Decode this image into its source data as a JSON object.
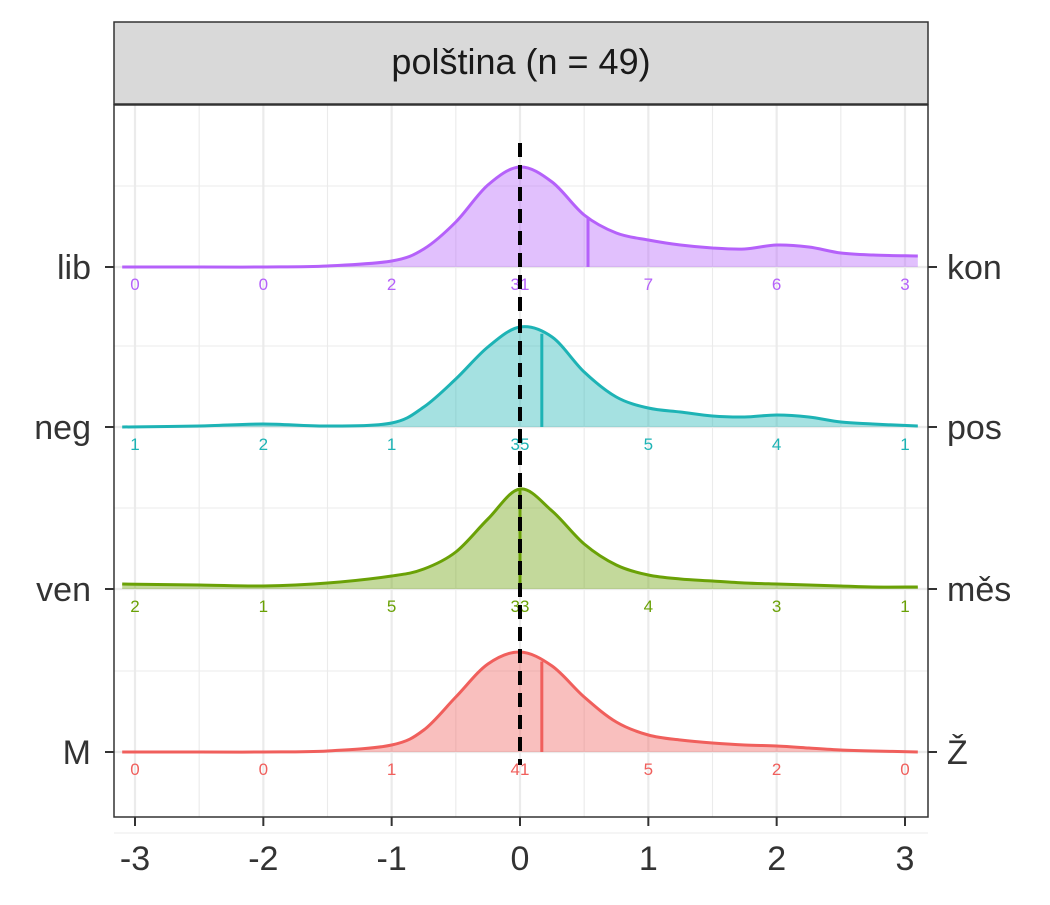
{
  "chart_data": {
    "type": "ridgeline-density",
    "title": "polština (n = 49)",
    "xlim": [
      -3,
      3
    ],
    "x_ticks": [
      "-3",
      "-2",
      "-1",
      "0",
      "1",
      "2",
      "3"
    ],
    "reference_line_x": 0,
    "grid": true,
    "series": [
      {
        "name": "lib–kon",
        "left_label": "lib",
        "right_label": "kon",
        "color": "#b561fa",
        "mean": 0.53,
        "counts": [
          0,
          0,
          2,
          31,
          7,
          6,
          3
        ],
        "density": [
          [
            -3.1,
            0
          ],
          [
            -2.5,
            0.0
          ],
          [
            -2.0,
            0.0
          ],
          [
            -1.5,
            0.01
          ],
          [
            -1.0,
            0.06
          ],
          [
            -0.75,
            0.18
          ],
          [
            -0.5,
            0.45
          ],
          [
            -0.25,
            0.82
          ],
          [
            0,
            1.0
          ],
          [
            0.25,
            0.85
          ],
          [
            0.5,
            0.52
          ],
          [
            0.75,
            0.34
          ],
          [
            1.0,
            0.27
          ],
          [
            1.25,
            0.22
          ],
          [
            1.5,
            0.19
          ],
          [
            1.75,
            0.18
          ],
          [
            2.0,
            0.22
          ],
          [
            2.25,
            0.2
          ],
          [
            2.5,
            0.14
          ],
          [
            2.75,
            0.12
          ],
          [
            3.1,
            0.11
          ]
        ]
      },
      {
        "name": "neg–pos",
        "left_label": "neg",
        "right_label": "pos",
        "color": "#1db3b5",
        "mean": 0.17,
        "counts": [
          1,
          2,
          1,
          35,
          5,
          4,
          1
        ],
        "density": [
          [
            -3.1,
            0
          ],
          [
            -2.5,
            0.01
          ],
          [
            -2.0,
            0.03
          ],
          [
            -1.5,
            0.01
          ],
          [
            -1.0,
            0.04
          ],
          [
            -0.75,
            0.2
          ],
          [
            -0.5,
            0.48
          ],
          [
            -0.25,
            0.8
          ],
          [
            0,
            1.0
          ],
          [
            0.25,
            0.9
          ],
          [
            0.5,
            0.55
          ],
          [
            0.75,
            0.3
          ],
          [
            1.0,
            0.19
          ],
          [
            1.25,
            0.15
          ],
          [
            1.5,
            0.11
          ],
          [
            1.75,
            0.1
          ],
          [
            2.0,
            0.12
          ],
          [
            2.25,
            0.1
          ],
          [
            2.5,
            0.05
          ],
          [
            2.75,
            0.03
          ],
          [
            3.1,
            0.01
          ]
        ]
      },
      {
        "name": "ven–měs",
        "left_label": "ven",
        "right_label": "měs",
        "color": "#6aa106",
        "mean": 0.0,
        "counts": [
          2,
          1,
          5,
          33,
          4,
          3,
          1
        ],
        "density": [
          [
            -3.1,
            0.05
          ],
          [
            -2.5,
            0.04
          ],
          [
            -2.0,
            0.03
          ],
          [
            -1.5,
            0.06
          ],
          [
            -1.0,
            0.13
          ],
          [
            -0.75,
            0.2
          ],
          [
            -0.5,
            0.37
          ],
          [
            -0.25,
            0.7
          ],
          [
            0,
            1.0
          ],
          [
            0.25,
            0.78
          ],
          [
            0.5,
            0.45
          ],
          [
            0.75,
            0.24
          ],
          [
            1.0,
            0.14
          ],
          [
            1.25,
            0.1
          ],
          [
            1.5,
            0.08
          ],
          [
            1.75,
            0.06
          ],
          [
            2.0,
            0.05
          ],
          [
            2.25,
            0.04
          ],
          [
            2.5,
            0.03
          ],
          [
            2.75,
            0.02
          ],
          [
            3.1,
            0.02
          ]
        ]
      },
      {
        "name": "M–Ž",
        "left_label": "M",
        "right_label": "Ž",
        "color": "#f05f5c",
        "mean": 0.17,
        "counts": [
          0,
          0,
          1,
          41,
          5,
          2,
          0
        ],
        "density": [
          [
            -3.1,
            0
          ],
          [
            -2.5,
            0.0
          ],
          [
            -2.0,
            0.0
          ],
          [
            -1.5,
            0.01
          ],
          [
            -1.0,
            0.07
          ],
          [
            -0.75,
            0.22
          ],
          [
            -0.5,
            0.55
          ],
          [
            -0.25,
            0.88
          ],
          [
            0,
            1.0
          ],
          [
            0.25,
            0.86
          ],
          [
            0.5,
            0.55
          ],
          [
            0.75,
            0.3
          ],
          [
            1.0,
            0.17
          ],
          [
            1.25,
            0.12
          ],
          [
            1.5,
            0.09
          ],
          [
            1.75,
            0.07
          ],
          [
            2.0,
            0.06
          ],
          [
            2.25,
            0.04
          ],
          [
            2.5,
            0.02
          ],
          [
            2.75,
            0.01
          ],
          [
            3.1,
            0.0
          ]
        ]
      }
    ]
  }
}
